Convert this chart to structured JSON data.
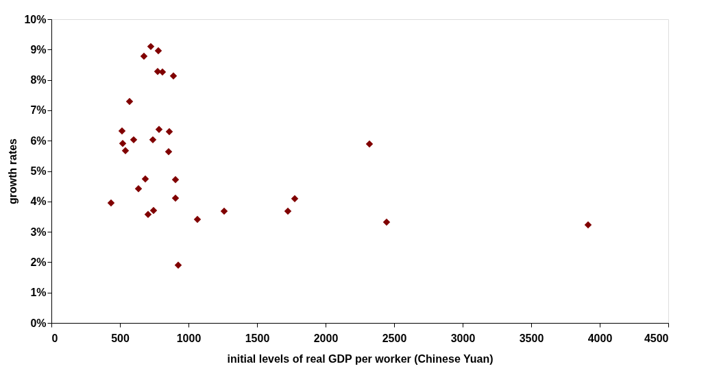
{
  "chart_data": {
    "type": "scatter",
    "xlabel": "initial levels of real GDP per worker (Chinese Yuan)",
    "ylabel": "growth rates",
    "xlim": [
      0,
      4500
    ],
    "xticks": [
      0,
      500,
      1000,
      1500,
      2000,
      2500,
      3000,
      3500,
      4000,
      4500
    ],
    "ylim": [
      0,
      10
    ],
    "yticks": [
      {
        "value": 0,
        "label": "0%"
      },
      {
        "value": 1,
        "label": "1%"
      },
      {
        "value": 2,
        "label": "2%"
      },
      {
        "value": 3,
        "label": "3%"
      },
      {
        "value": 4,
        "label": "4%"
      },
      {
        "value": 5,
        "label": "5%"
      },
      {
        "value": 6,
        "label": "6%"
      },
      {
        "value": 7,
        "label": "7%"
      },
      {
        "value": 8,
        "label": "8%"
      },
      {
        "value": 9,
        "label": "9%"
      },
      {
        "value": 10,
        "label": "10%"
      }
    ],
    "grid": false,
    "legend": false,
    "marker": "diamond",
    "series": [
      {
        "color": "#800000",
        "x": [
          435,
          570,
          515,
          520,
          540,
          600,
          635,
          675,
          685,
          705,
          725,
          740,
          745,
          780,
          775,
          785,
          810,
          855,
          860,
          890,
          905,
          905,
          925,
          1065,
          1260,
          1725,
          1775,
          2320,
          2445,
          3915
        ],
        "values": [
          3.95,
          7.29,
          6.32,
          5.91,
          5.67,
          6.03,
          4.42,
          8.78,
          4.74,
          3.57,
          9.1,
          6.03,
          3.7,
          8.96,
          8.28,
          6.37,
          8.26,
          5.64,
          6.3,
          8.13,
          4.72,
          4.11,
          1.9,
          3.41,
          3.68,
          3.68,
          4.09,
          5.89,
          3.32,
          3.23
        ]
      }
    ]
  }
}
